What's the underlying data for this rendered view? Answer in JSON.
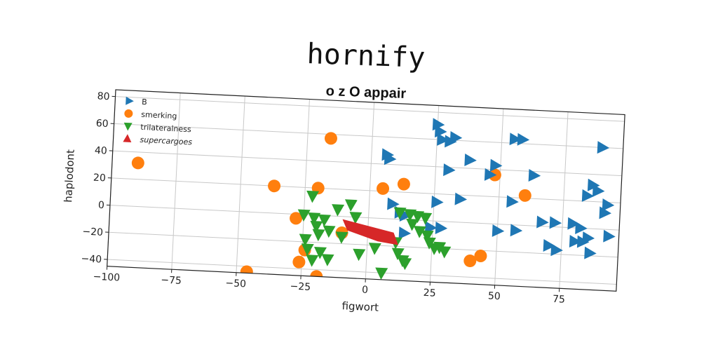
{
  "chart_data": {
    "type": "scatter",
    "title": "hornify",
    "subtitle": "o z O appair",
    "xlabel": "figwort",
    "ylabel": "haplodont",
    "xlim": [
      -100,
      97
    ],
    "ylim": [
      -45,
      85
    ],
    "xticks": [
      -100,
      -75,
      -50,
      -25,
      0,
      25,
      50,
      75
    ],
    "xtick_labels": [
      "−100",
      "−75",
      "−50",
      "−25",
      "0",
      "25",
      "50",
      "75"
    ],
    "yticks": [
      -40,
      -20,
      0,
      20,
      40,
      60,
      80
    ],
    "ytick_labels": [
      "−40",
      "−20",
      "0",
      "20",
      "40",
      "60",
      "80"
    ],
    "grid": true,
    "legend_position": "top-left",
    "series": [
      {
        "name": "B",
        "marker": "triangle-right",
        "color": "#1f77b4",
        "points": [
          [
            25,
            71
          ],
          [
            26,
            66
          ],
          [
            27,
            60
          ],
          [
            30,
            59
          ],
          [
            32,
            62
          ],
          [
            55,
            63
          ],
          [
            58,
            63
          ],
          [
            89,
            60
          ],
          [
            6,
            47
          ],
          [
            7,
            44
          ],
          [
            38,
            46
          ],
          [
            48,
            43
          ],
          [
            63,
            37
          ],
          [
            30,
            38
          ],
          [
            46,
            36
          ],
          [
            86,
            32
          ],
          [
            88,
            28
          ],
          [
            84,
            24
          ],
          [
            92,
            18
          ],
          [
            91,
            12
          ],
          [
            55,
            17
          ],
          [
            35,
            17
          ],
          [
            26,
            14
          ],
          [
            9,
            11
          ],
          [
            12,
            5
          ],
          [
            14,
            3
          ],
          [
            67,
            3
          ],
          [
            72,
            3
          ],
          [
            79,
            3
          ],
          [
            82,
            0
          ],
          [
            93,
            -5
          ],
          [
            24,
            -5
          ],
          [
            28,
            -5
          ],
          [
            50,
            -5
          ],
          [
            57,
            -4
          ],
          [
            14,
            -10
          ],
          [
            70,
            -14
          ],
          [
            73,
            -17
          ],
          [
            80,
            -10
          ],
          [
            83,
            -10
          ],
          [
            85,
            -7
          ],
          [
            86,
            -18
          ]
        ]
      },
      {
        "name": "smerking",
        "color": "#ff7f0e",
        "marker": "circle",
        "points": [
          [
            -90,
            32
          ],
          [
            -16,
            57
          ],
          [
            -37,
            20
          ],
          [
            -20,
            20
          ],
          [
            5,
            22
          ],
          [
            13,
            26
          ],
          [
            48,
            36
          ],
          [
            60,
            22
          ],
          [
            -28,
            -3
          ],
          [
            -24,
            -26
          ],
          [
            -26,
            -35
          ],
          [
            -46,
            -44
          ],
          [
            -23,
            -50
          ],
          [
            -19,
            -45
          ],
          [
            40,
            -28
          ],
          [
            44,
            -24
          ],
          [
            -10,
            -12
          ]
        ]
      },
      {
        "name": "trilateralness",
        "color": "#2ca02c",
        "marker": "triangle-down",
        "points": [
          [
            -22,
            14
          ],
          [
            -25,
            0
          ],
          [
            -21,
            -2
          ],
          [
            -17,
            -3
          ],
          [
            -12,
            5
          ],
          [
            -7,
            9
          ],
          [
            -5,
            0
          ],
          [
            -20,
            -8
          ],
          [
            -15,
            -11
          ],
          [
            -24,
            -18
          ],
          [
            -19,
            -14
          ],
          [
            -23,
            -25
          ],
          [
            -18,
            -27
          ],
          [
            -21,
            -33
          ],
          [
            -15,
            -32
          ],
          [
            -3,
            -27
          ],
          [
            3,
            -22
          ],
          [
            11,
            -17
          ],
          [
            12,
            -25
          ],
          [
            14,
            -30
          ],
          [
            15,
            -32
          ],
          [
            6,
            -40
          ],
          [
            12,
            5
          ],
          [
            16,
            4
          ],
          [
            19,
            3
          ],
          [
            22,
            2
          ],
          [
            17,
            -3
          ],
          [
            20,
            -8
          ],
          [
            23,
            -11
          ],
          [
            24,
            -16
          ],
          [
            26,
            -20
          ],
          [
            28,
            -19
          ],
          [
            30,
            -22
          ],
          [
            -10,
            -15
          ]
        ]
      },
      {
        "name": "supercargoes",
        "color": "#d62728",
        "marker": "triangle-up",
        "polygon": [
          [
            -10,
            -2
          ],
          [
            10,
            -10
          ],
          [
            12,
            -19
          ],
          [
            4,
            -17
          ],
          [
            -8,
            -10
          ]
        ]
      }
    ]
  }
}
